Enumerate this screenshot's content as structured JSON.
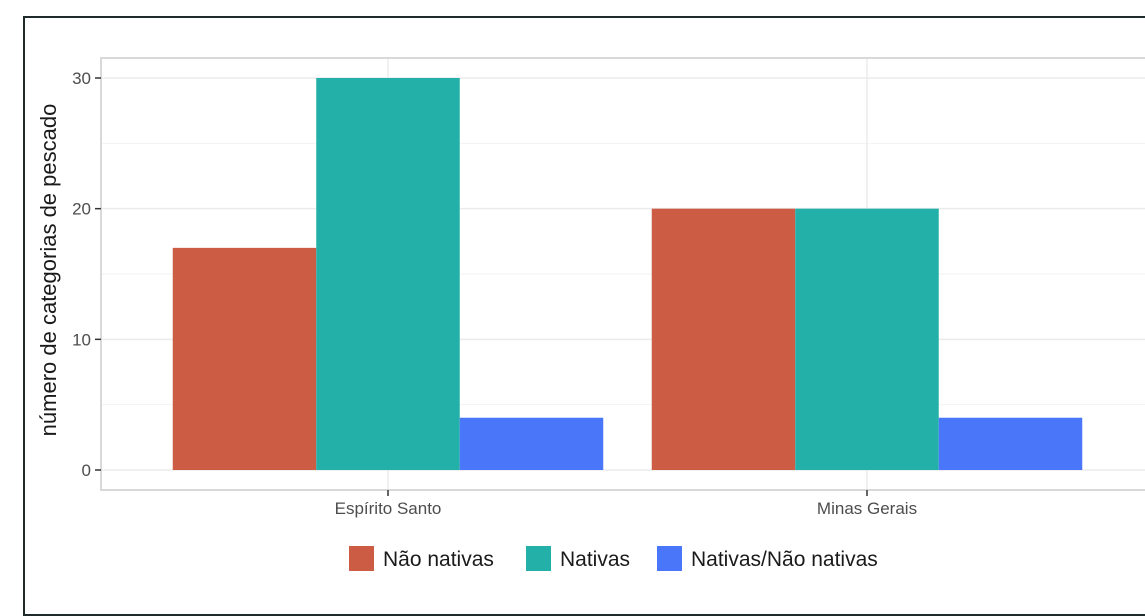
{
  "chart_data": {
    "type": "bar",
    "title": "",
    "xlabel": "",
    "ylabel": "número de categorias de pescado",
    "categories": [
      "Espírito Santo",
      "Minas Gerais"
    ],
    "series": [
      {
        "name": "Não nativas",
        "values": [
          17,
          20
        ],
        "color": "#cd5c45"
      },
      {
        "name": "Nativas",
        "values": [
          30,
          20
        ],
        "color": "#22b0a9"
      },
      {
        "name": "Nativas/Não nativas",
        "values": [
          4,
          4
        ],
        "color": "#4a76fa"
      }
    ],
    "ylim": [
      0,
      31.5
    ],
    "yticks": [
      0,
      10,
      20,
      30
    ],
    "grid": true,
    "legend_position": "bottom"
  }
}
